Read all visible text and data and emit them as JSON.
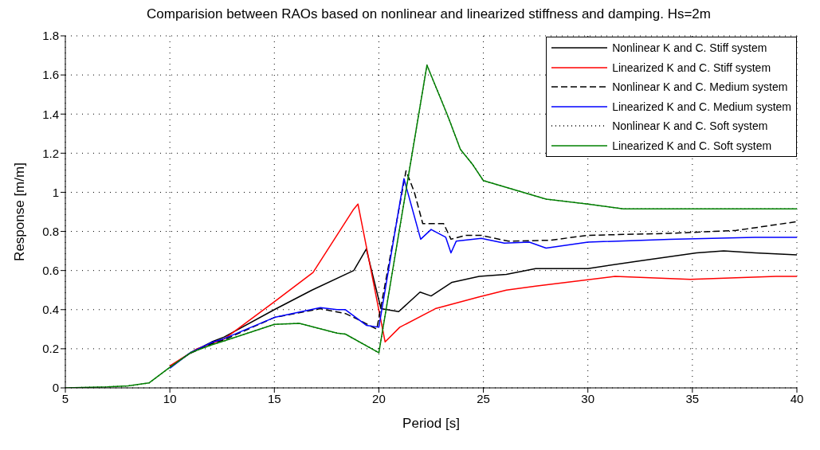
{
  "chart_data": {
    "type": "line",
    "title": "Comparision between RAOs based on nonlinear and linearized stiffness and damping. Hs=2m",
    "xlabel": "Period [s]",
    "ylabel": "Response [m/m]",
    "xlim": [
      5,
      40
    ],
    "xticks": [
      5,
      10,
      15,
      20,
      25,
      30,
      35,
      40
    ],
    "ylim": [
      0,
      1.8
    ],
    "yticks": [
      0,
      0.2,
      0.4,
      0.6,
      0.8,
      1,
      1.2,
      1.4,
      1.6,
      1.8
    ],
    "grid": true,
    "legend": "top right",
    "series": [
      {
        "name": "Nonlinear K and C. Stiff system",
        "color": "#000000",
        "line_style": "solid",
        "x": [
          10,
          11,
          12,
          12.6,
          15,
          16.8,
          18.8,
          19.4,
          20.1,
          20.95,
          21.97,
          22.5,
          23.5,
          24.8,
          26.1,
          27.5,
          30,
          32.5,
          35.2,
          36.5,
          38,
          40
        ],
        "values": [
          0.108,
          0.18,
          0.235,
          0.26,
          0.4,
          0.5,
          0.6,
          0.71,
          0.405,
          0.39,
          0.49,
          0.47,
          0.54,
          0.57,
          0.58,
          0.61,
          0.61,
          0.65,
          0.69,
          0.7,
          0.69,
          0.68
        ]
      },
      {
        "name": "Linearized K and C. Stiff system",
        "color": "#ff0000",
        "line_style": "solid",
        "x": [
          10,
          11.3,
          12.6,
          15,
          16.85,
          18.77,
          19,
          20.3,
          21,
          22.7,
          24.8,
          26.1,
          27.5,
          31.3,
          34.9,
          39,
          40
        ],
        "values": [
          0.112,
          0.2,
          0.25,
          0.44,
          0.59,
          0.91,
          0.94,
          0.235,
          0.31,
          0.405,
          0.465,
          0.5,
          0.52,
          0.57,
          0.555,
          0.57,
          0.57
        ]
      },
      {
        "name": "Nonlinear K and C. Medium system",
        "color": "#000000",
        "line_style": "dashed",
        "x": [
          11,
          12,
          12.6,
          15,
          17.2,
          18.4,
          19,
          19.9,
          21.3,
          21.7,
          22.1,
          22.5,
          23.1,
          23.45,
          24.15,
          24.9,
          26.2,
          28.2,
          30,
          33.9,
          37.1,
          40
        ],
        "values": [
          0.178,
          0.226,
          0.246,
          0.36,
          0.405,
          0.38,
          0.35,
          0.3,
          1.11,
          1,
          0.84,
          0.84,
          0.84,
          0.76,
          0.78,
          0.78,
          0.75,
          0.755,
          0.78,
          0.79,
          0.805,
          0.85
        ]
      },
      {
        "name": "Linearized K and C. Medium system",
        "color": "#0000ff",
        "line_style": "solid",
        "x": [
          10,
          11,
          12,
          12.6,
          15,
          17.2,
          18,
          18.4,
          19.4,
          20,
          21.2,
          22,
          22.5,
          23.2,
          23.45,
          23.7,
          24.9,
          26,
          27.2,
          28,
          30,
          33.9,
          38,
          40
        ],
        "values": [
          0.1,
          0.182,
          0.232,
          0.252,
          0.36,
          0.41,
          0.4,
          0.4,
          0.32,
          0.31,
          1.07,
          0.76,
          0.81,
          0.77,
          0.69,
          0.75,
          0.765,
          0.74,
          0.745,
          0.715,
          0.745,
          0.76,
          0.77,
          0.77
        ]
      },
      {
        "name": "Nonlinear K and C. Soft system",
        "color": "#000000",
        "line_style": "dotted",
        "x": [
          5,
          7,
          8,
          9,
          10,
          11,
          12,
          12.6,
          15,
          16.2,
          18,
          18.4,
          20,
          22.3,
          23.3,
          23.9,
          24.5,
          25,
          28,
          30,
          31.7,
          35,
          40
        ],
        "values": [
          0,
          0.005,
          0.01,
          0.025,
          0.105,
          0.18,
          0.22,
          0.24,
          0.325,
          0.33,
          0.28,
          0.275,
          0.18,
          1.65,
          1.39,
          1.22,
          1.14,
          1.06,
          0.965,
          0.94,
          0.915,
          0.915,
          0.915
        ]
      },
      {
        "name": "Linearized K and C. Soft system",
        "color": "#008000",
        "line_style": "solid",
        "x": [
          5,
          7,
          8,
          9,
          10,
          11,
          12,
          12.6,
          15,
          16.2,
          18,
          18.4,
          20,
          22.3,
          23.3,
          23.9,
          24.5,
          25,
          28,
          30,
          31.7,
          35,
          40
        ],
        "values": [
          0,
          0.005,
          0.01,
          0.025,
          0.105,
          0.18,
          0.22,
          0.24,
          0.325,
          0.33,
          0.28,
          0.275,
          0.18,
          1.65,
          1.39,
          1.22,
          1.14,
          1.06,
          0.965,
          0.94,
          0.915,
          0.915,
          0.915
        ]
      }
    ]
  }
}
